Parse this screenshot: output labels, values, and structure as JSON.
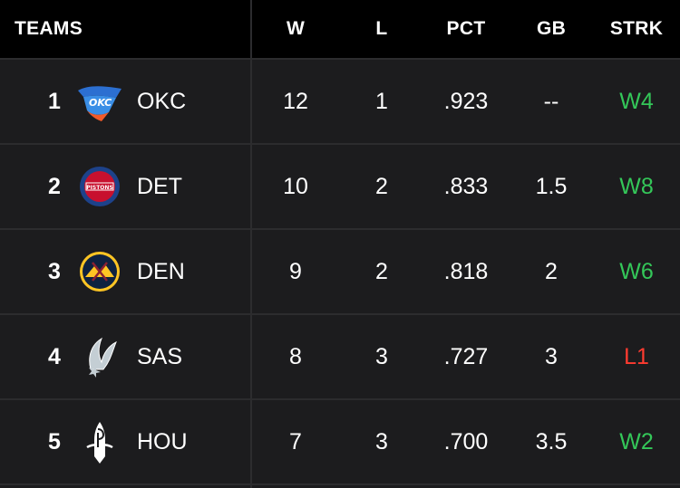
{
  "header": {
    "teams": "TEAMS",
    "w": "W",
    "l": "L",
    "pct": "PCT",
    "gb": "GB",
    "strk": "STRK"
  },
  "rows": [
    {
      "rank": "1",
      "team": "OKC",
      "logo_icon": "okc-thunder-logo-icon",
      "w": "12",
      "l": "1",
      "pct": ".923",
      "gb": "--",
      "strk": "W4",
      "strk_type": "win"
    },
    {
      "rank": "2",
      "team": "DET",
      "logo_icon": "detroit-pistons-logo-icon",
      "w": "10",
      "l": "2",
      "pct": ".833",
      "gb": "1.5",
      "strk": "W8",
      "strk_type": "win"
    },
    {
      "rank": "3",
      "team": "DEN",
      "logo_icon": "denver-nuggets-logo-icon",
      "w": "9",
      "l": "2",
      "pct": ".818",
      "gb": "2",
      "strk": "W6",
      "strk_type": "win"
    },
    {
      "rank": "4",
      "team": "SAS",
      "logo_icon": "san-antonio-spurs-logo-icon",
      "w": "8",
      "l": "3",
      "pct": ".727",
      "gb": "3",
      "strk": "L1",
      "strk_type": "loss"
    },
    {
      "rank": "5",
      "team": "HOU",
      "logo_icon": "houston-rockets-logo-icon",
      "w": "7",
      "l": "3",
      "pct": ".700",
      "gb": "3.5",
      "strk": "W2",
      "strk_type": "win"
    }
  ],
  "colors": {
    "background": "#1c1c1e",
    "header_background": "#000000",
    "divider": "#2c2c2e",
    "win": "#34c759",
    "loss": "#ff3b30"
  }
}
